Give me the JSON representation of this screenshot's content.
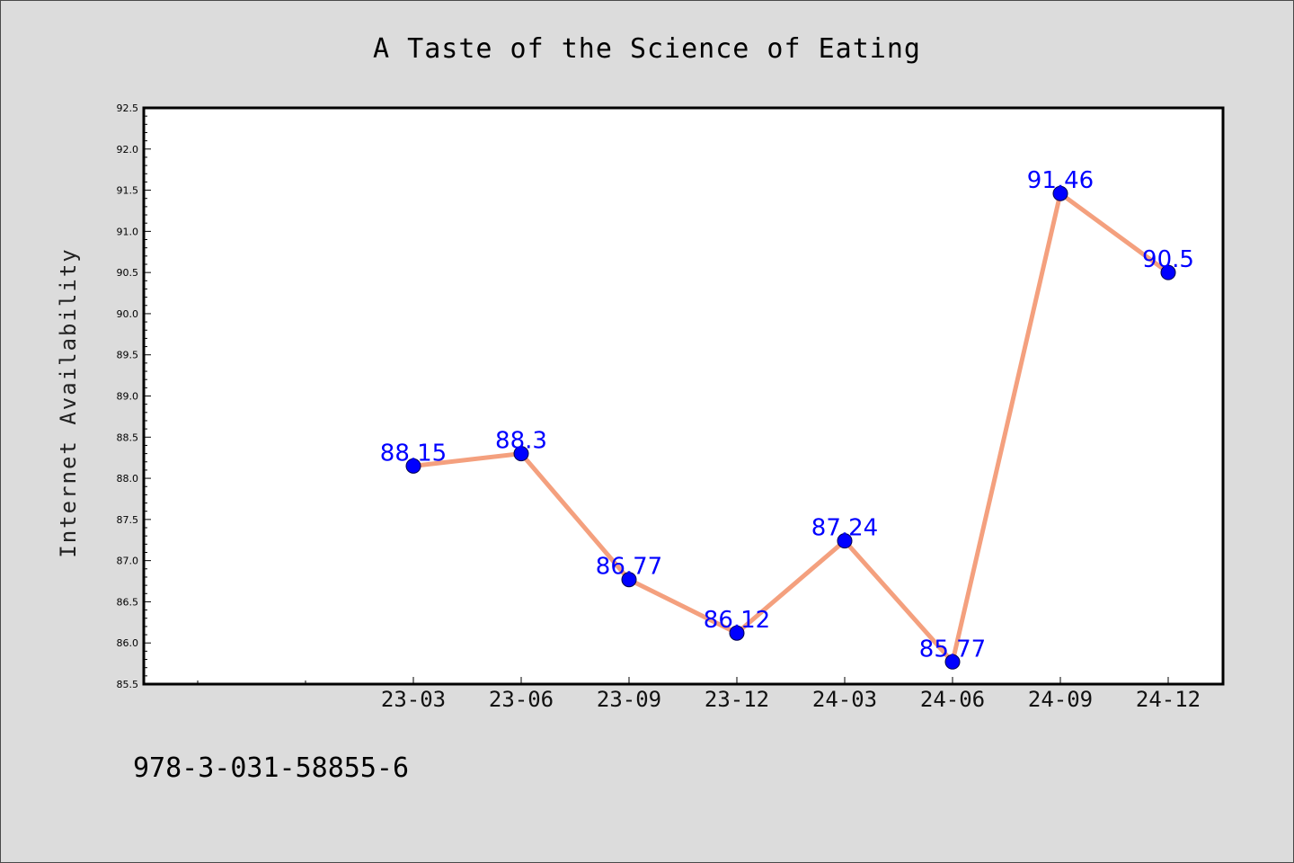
{
  "chart_data": {
    "type": "line",
    "title": "A Taste of the Science of Eating",
    "ylabel": "Internet Availability",
    "xlabel": "",
    "categories": [
      "23-03",
      "23-06",
      "23-09",
      "23-12",
      "24-03",
      "24-06",
      "24-09",
      "24-12"
    ],
    "series": [
      {
        "values": [
          88.15,
          88.3,
          86.77,
          86.12,
          87.24,
          85.77,
          91.46,
          90.5
        ],
        "labels": [
          "88.15",
          "88.3",
          "86.77",
          "86.12",
          "87.24",
          "85.77",
          "91.46",
          "90.5"
        ],
        "line_color": "#f4a07e",
        "marker_color": "#0000ff"
      }
    ],
    "ylim": [
      85.5,
      92.5
    ],
    "yticks": [
      "85.5",
      "86.0",
      "86.5",
      "87.0",
      "87.5",
      "88.0",
      "88.5",
      "89.0",
      "89.5",
      "90.0",
      "90.5",
      "91.0",
      "91.5",
      "92.0",
      "92.5"
    ],
    "grid": false,
    "legend": "none"
  },
  "footer": {
    "code": "978-3-031-58855-6"
  }
}
